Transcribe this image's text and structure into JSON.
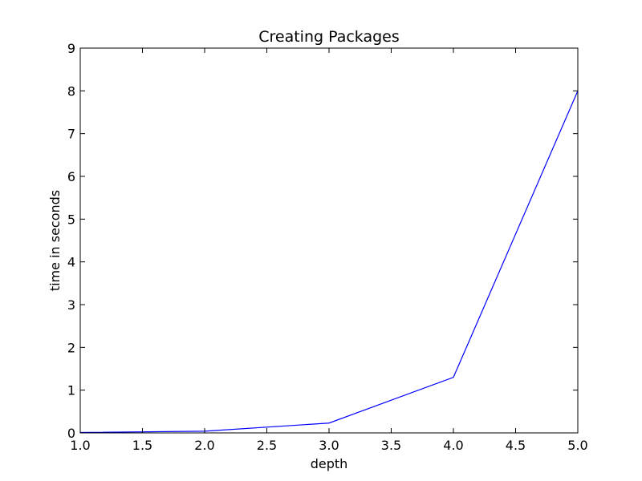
{
  "chart_data": {
    "type": "line",
    "title": "Creating Packages",
    "xlabel": "depth",
    "ylabel": "time in seconds",
    "xlim": [
      1.0,
      5.0
    ],
    "ylim": [
      0,
      9
    ],
    "xticks": [
      "1.0",
      "1.5",
      "2.0",
      "2.5",
      "3.0",
      "3.5",
      "4.0",
      "4.5",
      "5.0"
    ],
    "yticks": [
      "0",
      "1",
      "2",
      "3",
      "4",
      "5",
      "6",
      "7",
      "8",
      "9"
    ],
    "grid": false,
    "series": [
      {
        "color": "#0000ff",
        "x": [
          1,
          2,
          3,
          4,
          5
        ],
        "y": [
          0.01,
          0.04,
          0.23,
          1.3,
          8.0
        ]
      }
    ]
  }
}
